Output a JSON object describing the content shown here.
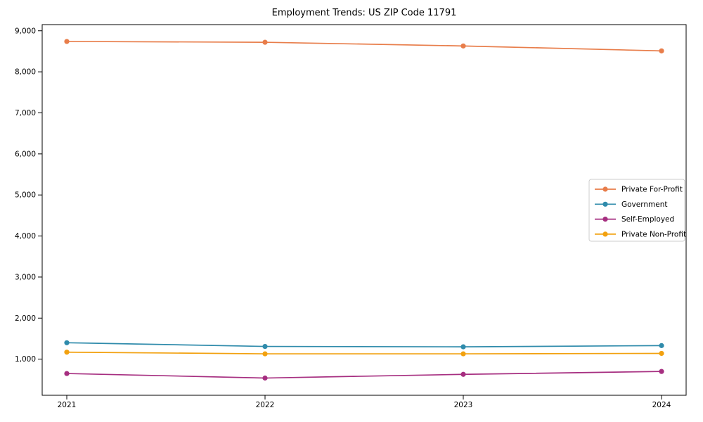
{
  "chart_data": {
    "type": "line",
    "title": "Employment Trends: US ZIP Code 11791",
    "categories": [
      "2021",
      "2022",
      "2023",
      "2024"
    ],
    "series": [
      {
        "name": "Private For-Profit",
        "color": "#e87d4a",
        "values": [
          8740,
          8720,
          8630,
          8510
        ]
      },
      {
        "name": "Government",
        "color": "#2f8bab",
        "values": [
          1400,
          1310,
          1300,
          1330
        ]
      },
      {
        "name": "Self-Employed",
        "color": "#a62e80",
        "values": [
          650,
          540,
          630,
          700
        ]
      },
      {
        "name": "Private Non-Profit",
        "color": "#f2a10f",
        "values": [
          1170,
          1130,
          1130,
          1140
        ]
      }
    ],
    "xlabel": "",
    "ylabel": "",
    "ylim": [
      120,
      9150
    ],
    "yticks": [
      1000,
      2000,
      3000,
      4000,
      5000,
      6000,
      7000,
      8000,
      9000
    ],
    "ytick_labels": [
      "1,000",
      "2,000",
      "3,000",
      "4,000",
      "5,000",
      "6,000",
      "7,000",
      "8,000",
      "9,000"
    ],
    "xtick_labels": [
      "2021",
      "2022",
      "2023",
      "2024"
    ],
    "grid": false,
    "legend_position": "center right",
    "marker": "circle",
    "background_color": "#ffffff",
    "axis_color": "#000000"
  }
}
